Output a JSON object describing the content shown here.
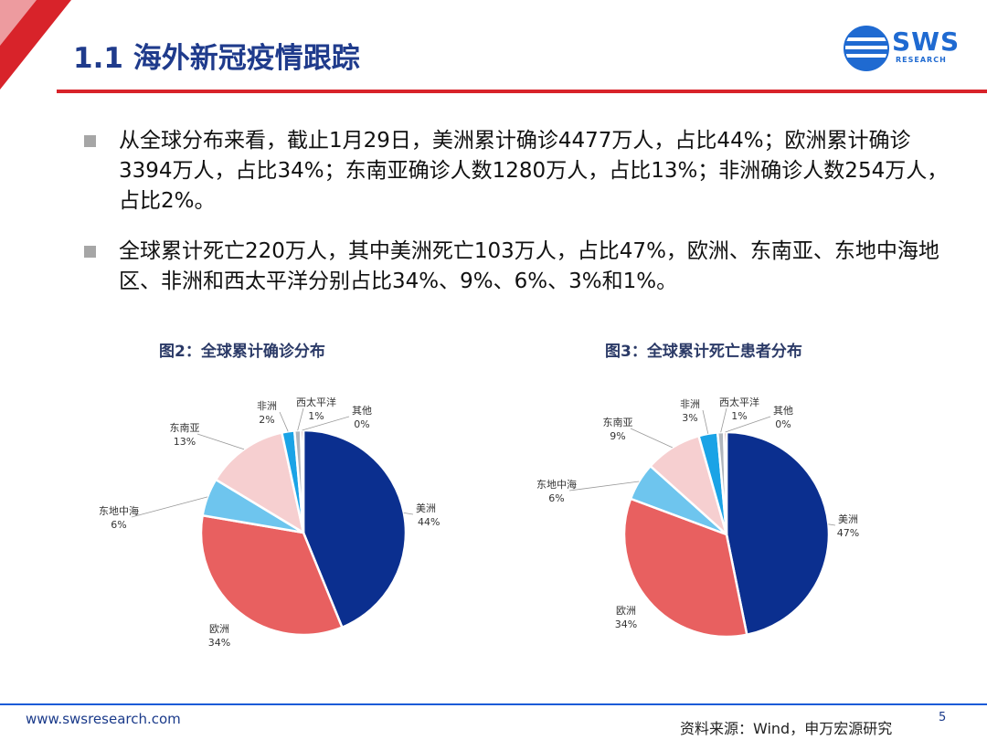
{
  "header": {
    "title": "1.1 海外新冠疫情跟踪",
    "logo_text": "SWS",
    "logo_sub": "RESEARCH"
  },
  "bullets": [
    "从全球分布来看，截止1月29日，美洲累计确诊4477万人，占比44%；欧洲累计确诊3394万人，占比34%；东南亚确诊人数1280万人，占比13%；非洲确诊人数254万人，占比2%。",
    "全球累计死亡220万人，其中美洲死亡103万人，占比47%，欧洲、东南亚、东地中海地区、非洲和西太平洋分别占比34%、9%、6%、3%和1%。"
  ],
  "colors": {
    "美洲": "#0b2f8f",
    "欧洲": "#e86060",
    "东地中海": "#6ec5ee",
    "东南亚": "#f6cfd0",
    "非洲": "#1aa3e6",
    "西太平洋": "#b1b6bd",
    "其他": "#8b1a1a"
  },
  "chart_data": [
    {
      "type": "pie",
      "title": "图2：全球累计确诊分布",
      "slices": [
        {
          "name": "美洲",
          "value": 44,
          "label": "44%"
        },
        {
          "name": "欧洲",
          "value": 34,
          "label": "34%"
        },
        {
          "name": "东地中海",
          "value": 6,
          "label": "6%"
        },
        {
          "name": "东南亚",
          "value": 13,
          "label": "13%"
        },
        {
          "name": "非洲",
          "value": 2,
          "label": "2%"
        },
        {
          "name": "西太平洋",
          "value": 1,
          "label": "1%"
        },
        {
          "name": "其他",
          "value": 0.4,
          "label": "0%"
        }
      ]
    },
    {
      "type": "pie",
      "title": "图3：全球累计死亡患者分布",
      "slices": [
        {
          "name": "美洲",
          "value": 47,
          "label": "47%"
        },
        {
          "name": "欧洲",
          "value": 34,
          "label": "34%"
        },
        {
          "name": "东地中海",
          "value": 6,
          "label": "6%"
        },
        {
          "name": "东南亚",
          "value": 9,
          "label": "9%"
        },
        {
          "name": "非洲",
          "value": 3,
          "label": "3%"
        },
        {
          "name": "西太平洋",
          "value": 1,
          "label": "1%"
        },
        {
          "name": "其他",
          "value": 0.4,
          "label": "0%"
        }
      ]
    }
  ],
  "footer": {
    "url": "www.swsresearch.com",
    "source": "资料来源：Wind，申万宏源研究",
    "page": "5"
  }
}
